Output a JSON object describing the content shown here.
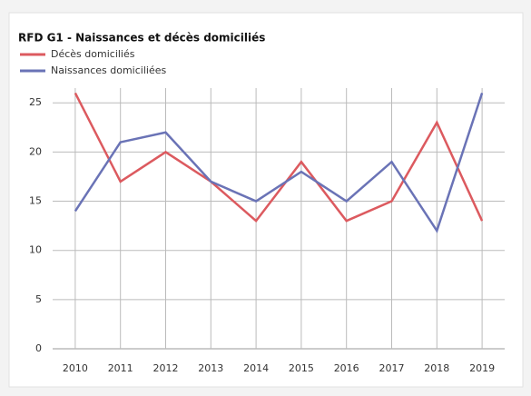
{
  "chart_data": {
    "type": "line",
    "title": "RFD G1 - Naissances et décès domiciliés",
    "categories": [
      "2010",
      "2011",
      "2012",
      "2013",
      "2014",
      "2015",
      "2016",
      "2017",
      "2018",
      "2019"
    ],
    "series": [
      {
        "name": "Décès domiciliés",
        "color": "#dc5a5f",
        "values": [
          26,
          17,
          20,
          17,
          13,
          19,
          13,
          15,
          23,
          13
        ]
      },
      {
        "name": "Naissances domiciliées",
        "color": "#6a73b6",
        "values": [
          14,
          21,
          22,
          17,
          15,
          18,
          15,
          19,
          12,
          26
        ]
      }
    ],
    "ylim": [
      0,
      26.5
    ],
    "yticks": [
      0,
      5,
      10,
      15,
      20,
      25
    ],
    "grid": true,
    "legend": "top-left"
  }
}
